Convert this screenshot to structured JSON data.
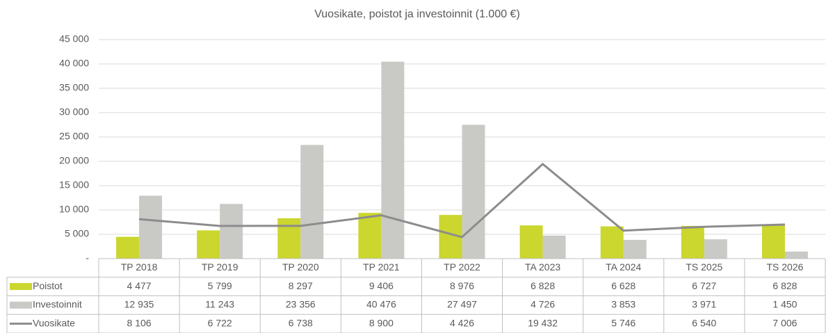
{
  "chart_data": {
    "type": "bar",
    "title": "Vuosikate, poistot ja investoinnit (1.000 €)",
    "categories": [
      "TP 2018",
      "TP 2019",
      "TP 2020",
      "TP 2021",
      "TP 2022",
      "TA 2023",
      "TA 2024",
      "TS 2025",
      "TS 2026"
    ],
    "series": [
      {
        "name": "Poistot",
        "type": "bar",
        "color": "#cbd62f",
        "values": [
          4477,
          5799,
          8297,
          9406,
          8976,
          6828,
          6628,
          6727,
          6828
        ],
        "value_labels": [
          "4 477",
          "5 799",
          "8 297",
          "9 406",
          "8 976",
          "6 828",
          "6 628",
          "6 727",
          "6 828"
        ]
      },
      {
        "name": "Investoinnit",
        "type": "bar",
        "color": "#c9cac6",
        "values": [
          12935,
          11243,
          23356,
          40476,
          27497,
          4726,
          3853,
          3971,
          1450
        ],
        "value_labels": [
          "12 935",
          "11 243",
          "23 356",
          "40 476",
          "27 497",
          "4 726",
          "3 853",
          "3 971",
          "1 450"
        ]
      },
      {
        "name": "Vuosikate",
        "type": "line",
        "color": "#8c8c8c",
        "values": [
          8106,
          6722,
          6738,
          8900,
          4426,
          19432,
          5746,
          6540,
          7006
        ],
        "value_labels": [
          "8 106",
          "6 722",
          "6 738",
          "8 900",
          "4 426",
          "19 432",
          "5 746",
          "6 540",
          "7 006"
        ]
      }
    ],
    "ylim": [
      0,
      45000
    ],
    "yticks": [
      {
        "value": 0,
        "label": "-"
      },
      {
        "value": 5000,
        "label": "5 000"
      },
      {
        "value": 10000,
        "label": "10 000"
      },
      {
        "value": 15000,
        "label": "15 000"
      },
      {
        "value": 20000,
        "label": "20 000"
      },
      {
        "value": 25000,
        "label": "25 000"
      },
      {
        "value": 30000,
        "label": "30 000"
      },
      {
        "value": 35000,
        "label": "35 000"
      },
      {
        "value": 40000,
        "label": "40 000"
      },
      {
        "value": 45000,
        "label": "45 000"
      }
    ],
    "grid": true
  }
}
